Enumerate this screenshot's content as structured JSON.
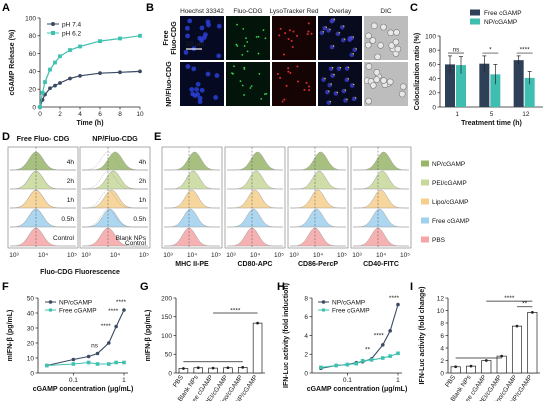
{
  "A": {
    "letter": "A",
    "ylabel": "cGAMP Release (%)",
    "xlabel": "Time (h)",
    "ylim": [
      0,
      100
    ],
    "yticks": [
      "0",
      "20",
      "40",
      "60",
      "80",
      "100"
    ],
    "xlim": [
      0,
      10
    ],
    "xticks": [
      "0",
      "2",
      "4",
      "6",
      "8",
      "10"
    ],
    "series": [
      {
        "name": "pH 7.4",
        "color": "#3b4a63",
        "x": [
          0,
          0.25,
          0.5,
          1,
          1.5,
          2,
          3,
          4,
          6,
          8,
          10
        ],
        "y": [
          0,
          8,
          14,
          21,
          24,
          27,
          32,
          35,
          38,
          39,
          40
        ]
      },
      {
        "name": "pH 6.2",
        "color": "#3fc1b0",
        "x": [
          0,
          0.25,
          0.5,
          1,
          1.5,
          2,
          3,
          4,
          6,
          8,
          10
        ],
        "y": [
          0,
          16,
          28,
          42,
          50,
          57,
          64,
          68,
          74,
          77,
          80
        ]
      }
    ]
  },
  "B": {
    "letter": "B",
    "cols": [
      "Hoechst 33342",
      "Fluo-CDG",
      "LysoTracker Red",
      "Overlay",
      "DIC"
    ],
    "rows": [
      "Free Fluo-CDG",
      "NP/Fluo-CDG"
    ],
    "scale": "20 μm"
  },
  "C": {
    "letter": "C",
    "ylabel": "Colocalization ratio (%)",
    "xlabel": "Treatment time (h)",
    "ylim": [
      0,
      100
    ],
    "yticks": [
      "0",
      "20",
      "40",
      "60",
      "80",
      "100"
    ],
    "categories": [
      "1",
      "5",
      "12"
    ],
    "series": [
      {
        "name": "Free cGAMP",
        "color": "#2e3f58",
        "values": [
          60,
          61,
          66
        ],
        "err": [
          12,
          11,
          6
        ]
      },
      {
        "name": "NP/cGAMP",
        "color": "#3fbdb0",
        "values": [
          59,
          46,
          41
        ],
        "err": [
          12,
          14,
          9
        ]
      }
    ],
    "sig": [
      "ns",
      "*",
      "****"
    ]
  },
  "D": {
    "letter": "D",
    "titles": [
      "Free Fluo- CDG",
      "NP/Fluo-CDG"
    ],
    "xlabel": "Fluo-CDG Fluorescence",
    "xticks": [
      "10³",
      "10⁴",
      "10⁵"
    ],
    "rows": [
      {
        "left": "4h",
        "right": "4h",
        "color": "#98b66a"
      },
      {
        "left": "2h",
        "right": "2h",
        "color": "#c7d89a"
      },
      {
        "left": "1h",
        "right": "1h",
        "color": "#f6cf8c"
      },
      {
        "left": "0.5h",
        "right": "0.5h",
        "color": "#9fd0ee"
      },
      {
        "left": "Control",
        "right": "Blank NPs",
        "color": "#f5a5a5"
      }
    ],
    "extra_label": "Control"
  },
  "E": {
    "letter": "E",
    "panels": [
      "MHC II-PE",
      "CD80-APC",
      "CD86-PercP",
      "CD40-FITC"
    ],
    "xticks": [
      "10³",
      "10⁴",
      "10⁵"
    ],
    "legend": [
      {
        "name": "NP/cGAMP",
        "color": "#98b66a"
      },
      {
        "name": "PEI/cGAMP",
        "color": "#c7d89a"
      },
      {
        "name": "Lipo/cGAMP",
        "color": "#f6cf8c"
      },
      {
        "name": "Free cGAMP",
        "color": "#9fd0ee"
      },
      {
        "name": "PBS",
        "color": "#f5a5a5"
      }
    ]
  },
  "F": {
    "letter": "F",
    "ylabel": "mIFN-β (pg/mL)",
    "xlabel": "cGAMP concentration (μg/mL)",
    "yticks": [
      "0",
      "10",
      "20",
      "30",
      "40",
      "50"
    ],
    "xticks": [
      "0.1",
      "1"
    ],
    "series": [
      {
        "name": "NP/cGAMP",
        "color": "#3b4a63",
        "x": [
          0.03,
          0.1,
          0.2,
          0.3,
          0.5,
          0.7,
          1.0
        ],
        "y": [
          5,
          9,
          11,
          13,
          20,
          31,
          42
        ]
      },
      {
        "name": "Free cGAMP",
        "color": "#3fc1b0",
        "x": [
          0.03,
          0.1,
          0.2,
          0.3,
          0.5,
          0.7,
          1.0
        ],
        "y": [
          5,
          6,
          7,
          6,
          6,
          7,
          7
        ]
      }
    ],
    "sig": [
      "ns",
      "****",
      "****",
      "****"
    ]
  },
  "G": {
    "letter": "G",
    "ylabel": "mIFN-β (pg/mL)",
    "yticks": [
      "0",
      "50",
      "100",
      "150",
      "200"
    ],
    "categories": [
      "PBS",
      "Blank NPs",
      "Free cGAMP",
      "PEI/cGAMP",
      "Lipo/cGAMP",
      "NP/cGAMP"
    ],
    "values": [
      12,
      14,
      13,
      14,
      15,
      133
    ],
    "sig": "****"
  },
  "H": {
    "letter": "H",
    "ylabel": "IFN-Luc activity (fold induction)",
    "xlabel": "cGAMP concentration (μg/mL)",
    "yticks": [
      "0",
      "2",
      "4",
      "6",
      "8"
    ],
    "xticks": [
      "0.1",
      "1"
    ],
    "series": [
      {
        "name": "NP/cGAMP",
        "color": "#3b4a63",
        "x": [
          0.03,
          0.06,
          0.1,
          0.15,
          0.2,
          0.3,
          0.5,
          0.7,
          1.0
        ],
        "y": [
          0.5,
          0.8,
          0.9,
          1.1,
          1.2,
          1.5,
          3,
          4.5,
          7.3
        ]
      },
      {
        "name": "Free cGAMP",
        "color": "#3fc1b0",
        "x": [
          0.03,
          0.06,
          0.1,
          0.15,
          0.2,
          0.3,
          0.5,
          0.7,
          1.0
        ],
        "y": [
          0.6,
          0.8,
          0.9,
          1.0,
          1.3,
          1.4,
          1.6,
          1.8,
          2.1
        ]
      }
    ],
    "sig": [
      "**",
      "****",
      "****"
    ]
  },
  "I": {
    "letter": "I",
    "ylabel": "IFN-Luc activity (fold change)",
    "yticks": [
      "0",
      "2",
      "4",
      "6",
      "8",
      "10",
      "12"
    ],
    "categories": [
      "PBS",
      "Blank NPs",
      "Free cGAMP",
      "PEI/cGAMP",
      "Lipo/cGAMP",
      "NP/cGAMP"
    ],
    "values": [
      1,
      1.1,
      2.0,
      2.7,
      7.5,
      9.7
    ],
    "sig": [
      "****",
      "**"
    ]
  }
}
